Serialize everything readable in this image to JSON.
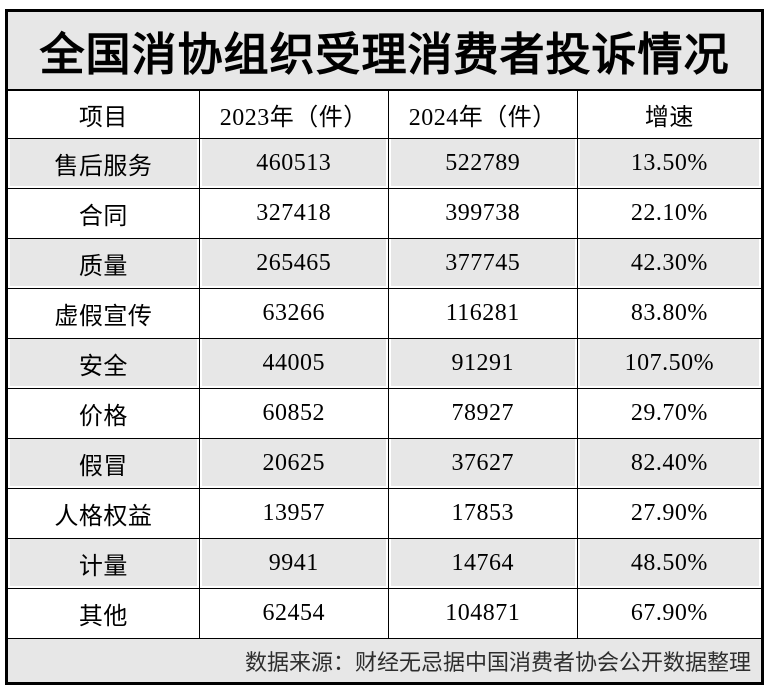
{
  "title": "全国消协组织受理消费者投诉情况",
  "table": {
    "columns": [
      "项目",
      "2023年（件）",
      "2024年（件）",
      "增速"
    ],
    "rows": [
      {
        "item": "售后服务",
        "y2023": "460513",
        "y2024": "522789",
        "growth": "13.50%"
      },
      {
        "item": "合同",
        "y2023": "327418",
        "y2024": "399738",
        "growth": "22.10%"
      },
      {
        "item": "质量",
        "y2023": "265465",
        "y2024": "377745",
        "growth": "42.30%"
      },
      {
        "item": "虚假宣传",
        "y2023": "63266",
        "y2024": "116281",
        "growth": "83.80%"
      },
      {
        "item": "安全",
        "y2023": "44005",
        "y2024": "91291",
        "growth": "107.50%"
      },
      {
        "item": "价格",
        "y2023": "60852",
        "y2024": "78927",
        "growth": "29.70%"
      },
      {
        "item": "假冒",
        "y2023": "20625",
        "y2024": "37627",
        "growth": "82.40%"
      },
      {
        "item": "人格权益",
        "y2023": "13957",
        "y2024": "17853",
        "growth": "27.90%"
      },
      {
        "item": "计量",
        "y2023": "9941",
        "y2024": "14764",
        "growth": "48.50%"
      },
      {
        "item": "其他",
        "y2023": "62454",
        "y2024": "104871",
        "growth": "67.90%"
      }
    ]
  },
  "footer": {
    "source": "数据来源：财经无忌据中国消费者协会公开数据整理"
  },
  "colors": {
    "band_gray": "#e7e7e7",
    "border_black": "#000000",
    "background": "#ffffff"
  },
  "chart_data": {
    "type": "table",
    "title": "全国消协组织受理消费者投诉情况",
    "columns": [
      "项目",
      "2023年（件）",
      "2024年（件）",
      "增速"
    ],
    "categories": [
      "售后服务",
      "合同",
      "质量",
      "虚假宣传",
      "安全",
      "价格",
      "假冒",
      "人格权益",
      "计量",
      "其他"
    ],
    "series": [
      {
        "name": "2023年（件）",
        "values": [
          460513,
          327418,
          265465,
          63266,
          44005,
          60852,
          20625,
          13957,
          9941,
          62454
        ]
      },
      {
        "name": "2024年（件）",
        "values": [
          522789,
          399738,
          377745,
          116281,
          91291,
          78927,
          37627,
          17853,
          14764,
          104871
        ]
      },
      {
        "name": "增速(%)",
        "values": [
          13.5,
          22.1,
          42.3,
          83.8,
          107.5,
          29.7,
          82.4,
          27.9,
          48.5,
          67.9
        ]
      }
    ],
    "source_note": "数据来源：财经无忌据中国消费者协会公开数据整理",
    "layout_hints": {
      "striped_rows": "odd data rows shaded gray",
      "title_band": "gray background, bold centered",
      "footer": "gray band, right-aligned source note"
    }
  }
}
